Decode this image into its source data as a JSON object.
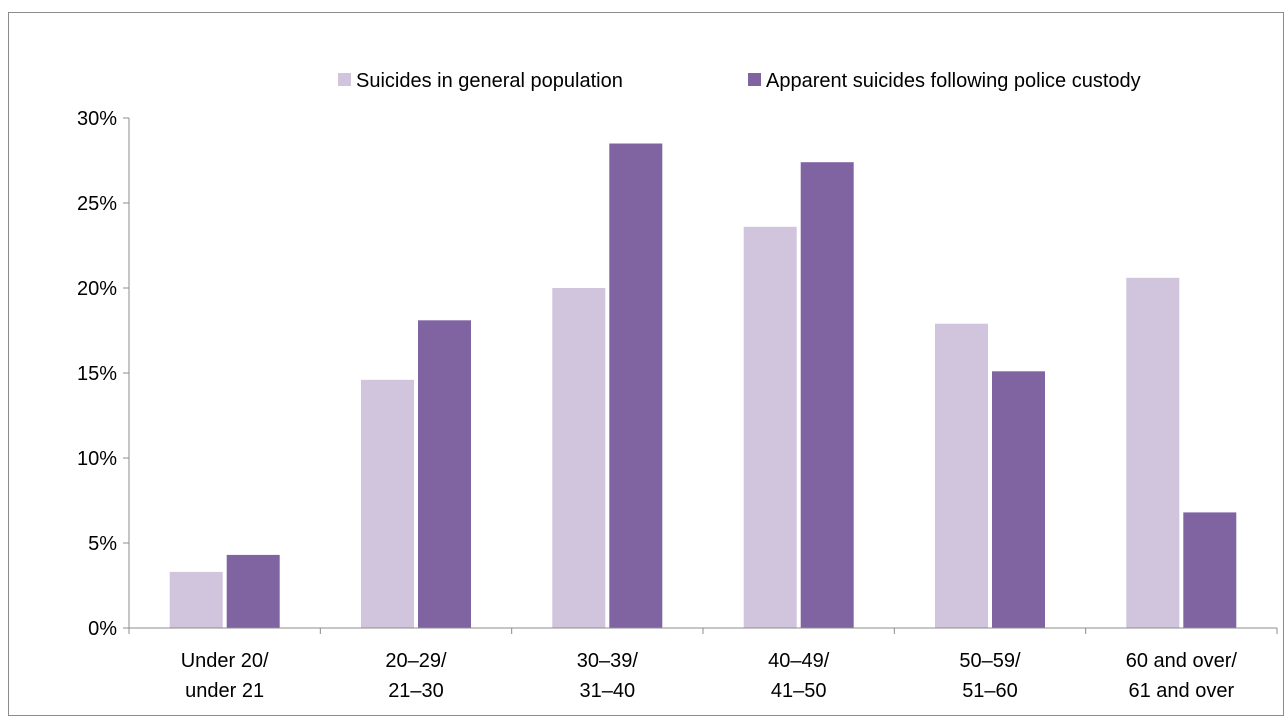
{
  "chart_data": {
    "type": "bar",
    "categories": [
      [
        "Under 20/",
        "under 21"
      ],
      [
        "20–29/",
        "21–30"
      ],
      [
        "30–39/",
        "31–40"
      ],
      [
        "40–49/",
        "41–50"
      ],
      [
        "50–59/",
        "51–60"
      ],
      [
        "60 and over/",
        "61 and over"
      ]
    ],
    "series": [
      {
        "name": "Suicides in general population",
        "color": "#d0c5dc",
        "values": [
          3.3,
          14.6,
          20.0,
          23.6,
          17.9,
          20.6
        ]
      },
      {
        "name": "Apparent suicides following police custody",
        "color": "#8064a2",
        "values": [
          4.3,
          18.1,
          28.5,
          27.4,
          15.1,
          6.8
        ]
      }
    ],
    "yticks": [
      "0%",
      "5%",
      "10%",
      "15%",
      "20%",
      "25%",
      "30%"
    ],
    "ylim": [
      0,
      30
    ],
    "grid": false,
    "legend_position": "top-right"
  }
}
